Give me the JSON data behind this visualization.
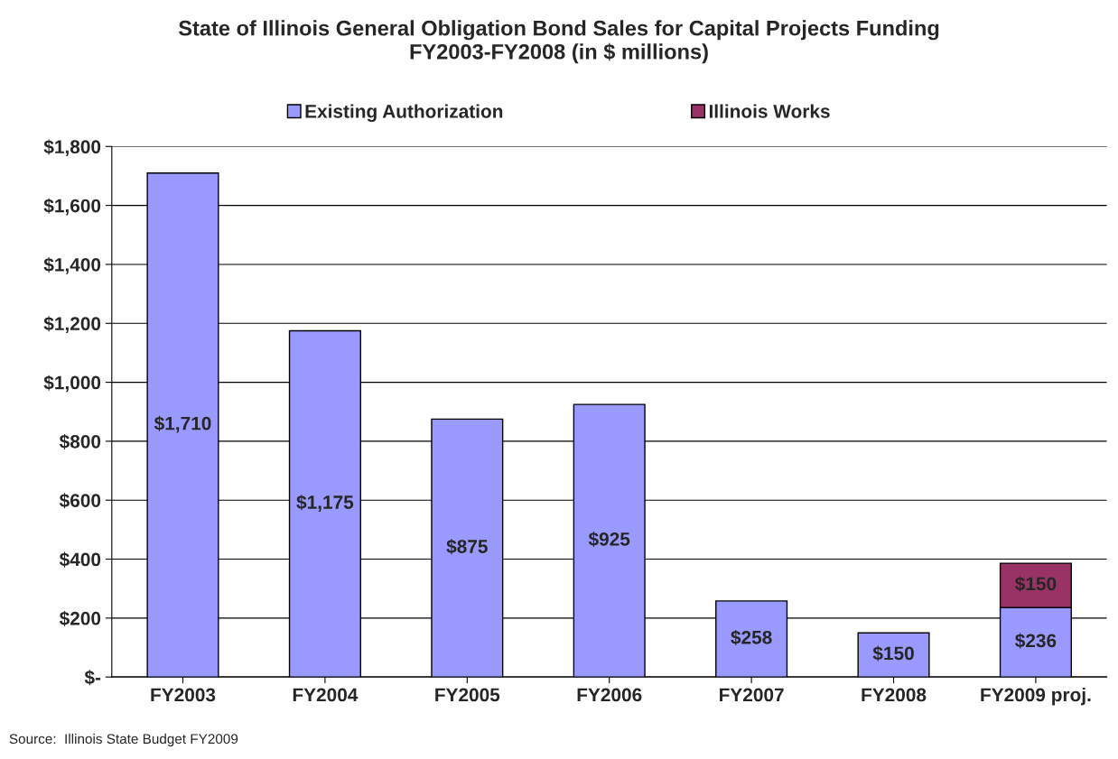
{
  "chart_data": {
    "type": "bar",
    "title": "State of Illinois General Obligation Bond Sales for Capital Projects Funding\nFY2003-FY2008 (in $ millions)",
    "categories": [
      "FY2003",
      "FY2004",
      "FY2005",
      "FY2006",
      "FY2007",
      "FY2008",
      "FY2009 proj."
    ],
    "stacked": true,
    "series": [
      {
        "name": "Existing Authorization",
        "color": "#9999ff",
        "values": [
          1710,
          1175,
          875,
          925,
          258,
          150,
          236
        ],
        "value_labels": [
          "$1,710",
          "$1,175",
          "$875",
          "$925",
          "$258",
          "$150",
          "$236"
        ]
      },
      {
        "name": "Illinois Works",
        "color": "#993366",
        "values": [
          null,
          null,
          null,
          null,
          null,
          null,
          150
        ],
        "value_labels": [
          null,
          null,
          null,
          null,
          null,
          null,
          "$150"
        ]
      }
    ],
    "ylim": [
      0,
      1800
    ],
    "yticks": [
      {
        "value": 0,
        "label": "$-"
      },
      {
        "value": 200,
        "label": "$200"
      },
      {
        "value": 400,
        "label": "$400"
      },
      {
        "value": 600,
        "label": "$600"
      },
      {
        "value": 800,
        "label": "$800"
      },
      {
        "value": 1000,
        "label": "$1,000"
      },
      {
        "value": 1200,
        "label": "$1,200"
      },
      {
        "value": 1400,
        "label": "$1,400"
      },
      {
        "value": 1600,
        "label": "$1,600"
      },
      {
        "value": 1800,
        "label": "$1,800"
      }
    ],
    "grid": "y",
    "legend": "top",
    "annotations": [
      "Source:  Illinois State Budget FY2009"
    ]
  }
}
